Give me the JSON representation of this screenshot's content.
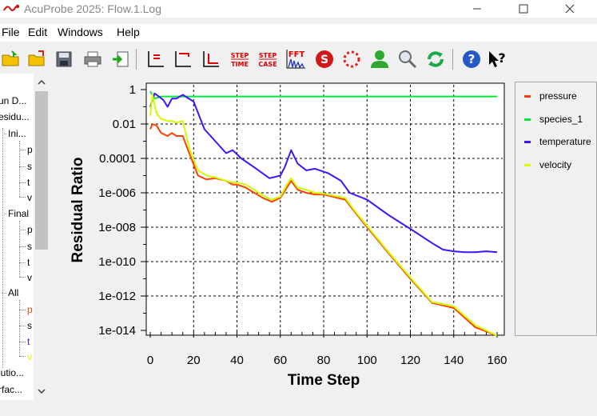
{
  "window": {
    "title": "AcuProbe 2025:  Flow.1.Log"
  },
  "menu": [
    "File",
    "Edit",
    "Windows",
    "Help"
  ],
  "toolbar": {
    "icons": [
      "open-folder-icon",
      "open-file-icon",
      "save-icon",
      "print-icon",
      "export-icon",
      "plot-lines-icon",
      "plot-corner-icon",
      "plot-axis-icon",
      "step-time-icon",
      "step-case-icon",
      "fft-icon",
      "stop-icon",
      "loading-icon",
      "user-icon",
      "zoom-icon",
      "refresh-icon",
      "help-icon",
      "what-is-this-icon"
    ],
    "step_time": [
      "STEP",
      "TIME"
    ],
    "step_case": [
      "STEP",
      "CASE"
    ],
    "fft": "FFT"
  },
  "tree": {
    "items": [
      "un D...",
      "esidu...",
      "Ini...",
      "p",
      "s",
      "t",
      "v",
      "Final",
      "p",
      "s",
      "t",
      "v",
      "All",
      "p",
      "s",
      "t",
      "v",
      "lutio...",
      "rfac..."
    ]
  },
  "chart_data": {
    "type": "line",
    "xlabel": "Time Step",
    "ylabel": "Residual Ratio",
    "xlim": [
      0,
      160
    ],
    "ylim_log10": [
      -14,
      0
    ],
    "y_scale": "log",
    "x_ticks": [
      "0",
      "20",
      "40",
      "60",
      "80",
      "100",
      "120",
      "140",
      "160"
    ],
    "y_ticks": [
      "1",
      "0.01",
      "0.0001",
      "1e-006",
      "1e-008",
      "1e-010",
      "1e-012",
      "1e-014"
    ],
    "grid": true,
    "legend_placement": "right",
    "series": [
      {
        "name": "pressure",
        "color": "#ff4000",
        "x": [
          0,
          1,
          3,
          5,
          8,
          10,
          12,
          15,
          18,
          22,
          26,
          30,
          35,
          38,
          40,
          44,
          48,
          52,
          56,
          60,
          63,
          65,
          68,
          72,
          76,
          80,
          84,
          90,
          95,
          100,
          110,
          120,
          130,
          140,
          150,
          160
        ],
        "y": [
          0.005,
          0.01,
          0.008,
          0.003,
          0.002,
          0.003,
          0.002,
          0.002,
          0.0002,
          1e-05,
          6e-06,
          7e-06,
          5e-06,
          3e-06,
          3e-06,
          2e-06,
          1e-06,
          5e-07,
          3e-07,
          5e-07,
          2e-06,
          5e-06,
          1.5e-06,
          1e-06,
          8e-07,
          8e-07,
          6e-07,
          4e-07,
          6e-08,
          1e-08,
          3e-10,
          1e-11,
          4e-13,
          2e-13,
          1.5e-14,
          2e-15
        ]
      },
      {
        "name": "species_1",
        "color": "#00e838",
        "x": [
          0,
          2,
          5,
          20,
          60,
          100,
          140,
          160
        ],
        "y": [
          0.8,
          0.3,
          0.4,
          0.4,
          0.4,
          0.4,
          0.4,
          0.4
        ]
      },
      {
        "name": "temperature",
        "color": "#3c14ff",
        "x": [
          0,
          2,
          4,
          6,
          8,
          10,
          12,
          15,
          20,
          25,
          30,
          35,
          38,
          42,
          48,
          55,
          60,
          62,
          65,
          68,
          72,
          76,
          82,
          88,
          92,
          100,
          110,
          120,
          130,
          135,
          140,
          145,
          150,
          155,
          160
        ],
        "y": [
          0.1,
          0.6,
          0.4,
          0.25,
          0.1,
          0.3,
          0.3,
          0.5,
          0.2,
          0.005,
          0.001,
          0.0002,
          0.0003,
          0.0001,
          3e-05,
          7e-06,
          1e-05,
          3e-05,
          0.0003,
          5e-05,
          2e-05,
          2.5e-05,
          1.4e-05,
          5e-06,
          1e-06,
          4e-07,
          5e-08,
          8e-09,
          1.2e-09,
          5e-10,
          4e-10,
          3.5e-10,
          3.5e-10,
          4e-10,
          3.5e-10
        ]
      },
      {
        "name": "velocity",
        "color": "#ccff00",
        "x": [
          0,
          1,
          3,
          5,
          8,
          10,
          12,
          15,
          18,
          22,
          26,
          30,
          35,
          38,
          40,
          44,
          48,
          52,
          56,
          60,
          63,
          65,
          68,
          72,
          76,
          80,
          84,
          90,
          95,
          100,
          110,
          120,
          130,
          140,
          150,
          160
        ],
        "y": [
          0.03,
          0.5,
          0.04,
          0.02,
          0.015,
          0.015,
          0.012,
          0.015,
          0.0004,
          2e-05,
          1e-05,
          8e-06,
          5e-06,
          4e-06,
          4e-06,
          3e-06,
          1.5e-06,
          7e-07,
          4e-07,
          6e-07,
          3e-06,
          7e-06,
          2e-06,
          1.5e-06,
          1e-06,
          9e-07,
          7e-07,
          5e-07,
          7e-08,
          1.2e-08,
          3.5e-10,
          1.2e-11,
          4.5e-13,
          2.5e-13,
          2e-14,
          2.5e-15
        ]
      }
    ]
  }
}
